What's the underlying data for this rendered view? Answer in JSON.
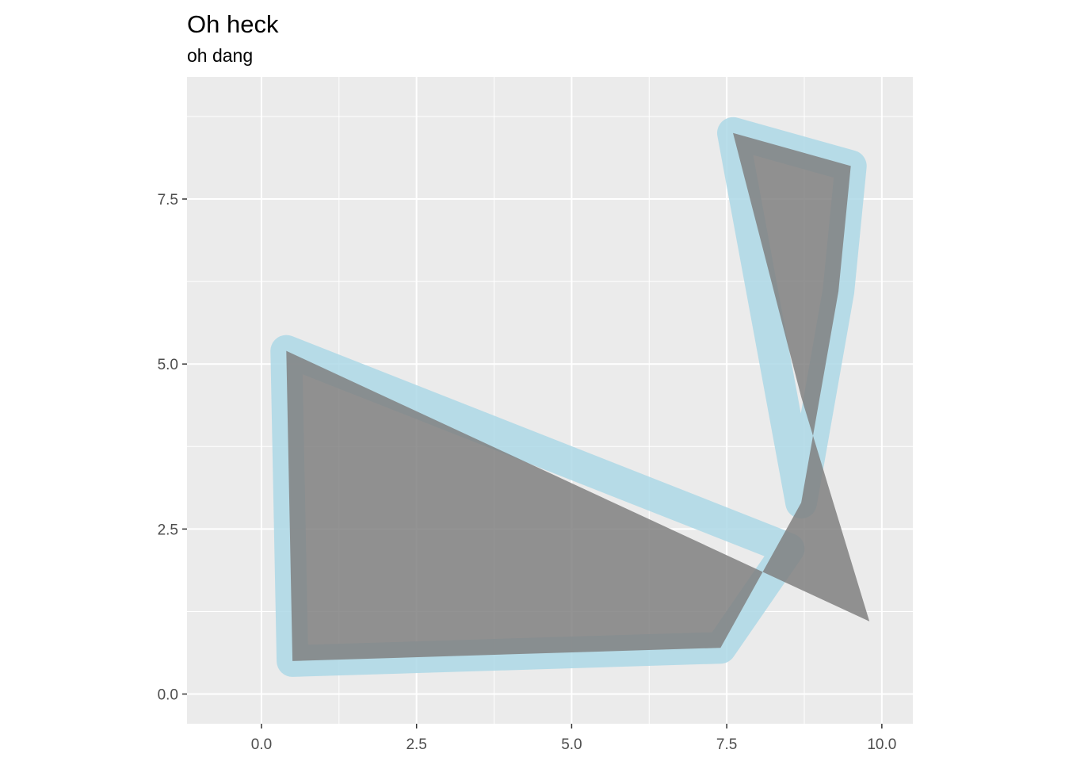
{
  "chart_data": {
    "type": "polygon",
    "title": "Oh heck",
    "subtitle": "oh dang",
    "xlabel": "",
    "ylabel": "",
    "xlim": [
      -1.2,
      10.5
    ],
    "ylim": [
      -0.45,
      9.35
    ],
    "x_ticks": [
      0.0,
      2.5,
      5.0,
      7.5,
      10.0
    ],
    "x_tick_labels": [
      "0.0",
      "2.5",
      "5.0",
      "7.5",
      "10.0"
    ],
    "y_ticks": [
      0.0,
      2.5,
      5.0,
      7.5
    ],
    "y_tick_labels": [
      "0.0",
      "2.5",
      "5.0",
      "7.5"
    ],
    "grid": true,
    "colors": {
      "panel": "#ebebeb",
      "grid": "#ffffff",
      "fill": "#808080",
      "fill_opacity": 0.85,
      "outline": "#add8e6",
      "outline_opacity": 0.85
    },
    "polygons": [
      {
        "fill_points": [
          [
            0.4,
            5.2
          ],
          [
            9.8,
            1.1
          ],
          [
            8.7,
            4.5
          ],
          [
            7.6,
            8.5
          ],
          [
            9.5,
            8.0
          ],
          [
            9.3,
            6.1
          ],
          [
            8.7,
            2.9
          ],
          [
            7.4,
            0.7
          ],
          [
            0.5,
            0.5
          ]
        ],
        "outline_points": [
          [
            0.4,
            5.2
          ],
          [
            8.5,
            2.2
          ],
          [
            7.4,
            0.7
          ],
          [
            0.5,
            0.5
          ]
        ]
      },
      {
        "outline_points": [
          [
            7.6,
            8.5
          ],
          [
            9.5,
            8.0
          ],
          [
            9.3,
            6.1
          ],
          [
            8.7,
            2.9
          ]
        ]
      }
    ]
  }
}
